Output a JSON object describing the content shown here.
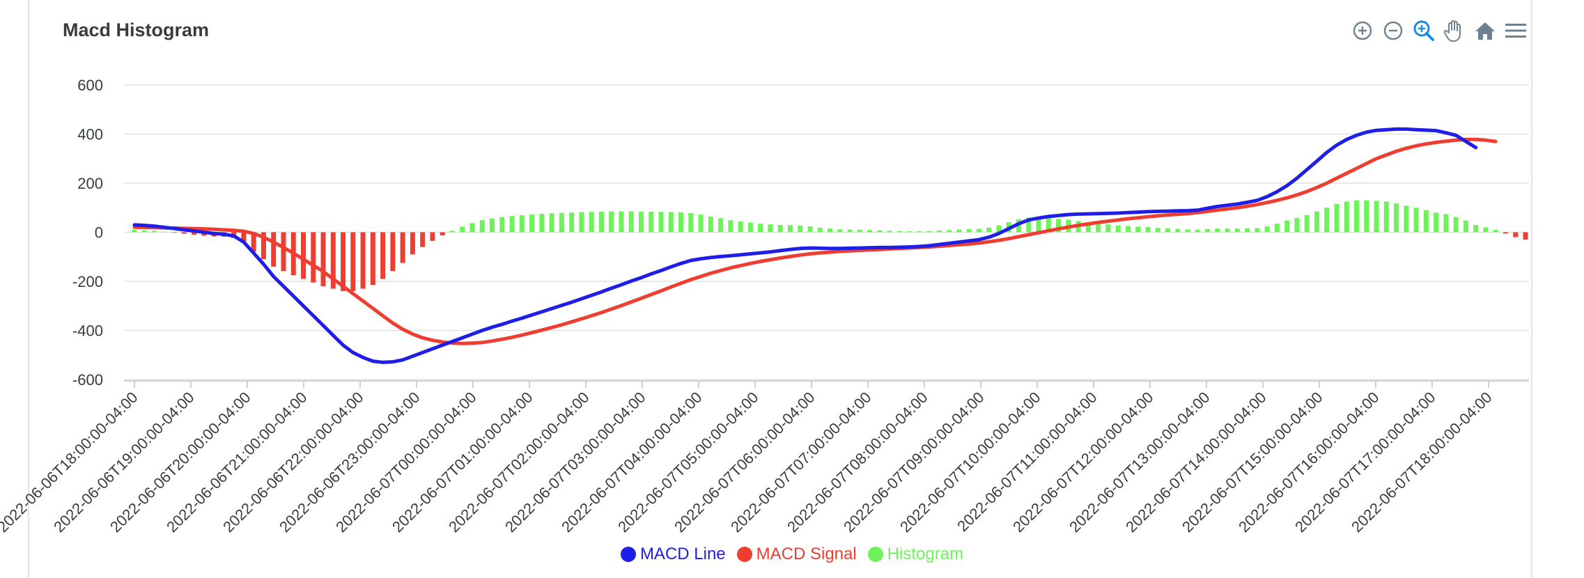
{
  "toolbar": {
    "icons": [
      "zoom-in-icon",
      "zoom-out-icon",
      "zoom-select-icon",
      "pan-icon",
      "home-icon",
      "menu-icon"
    ],
    "active_color": "#1e88e5",
    "idle_color": "#6e8192"
  },
  "chart_data": {
    "type": "line",
    "title": "Macd Histogram",
    "xlabel": "",
    "ylabel": "",
    "ylim": [
      -600,
      600
    ],
    "yticks": [
      600,
      400,
      200,
      0,
      -200,
      -400,
      -600
    ],
    "grid": true,
    "legend_position": "bottom",
    "x_labels": [
      "2022-06-06T18:00:00-04:00",
      "2022-06-06T19:00:00-04:00",
      "2022-06-06T20:00:00-04:00",
      "2022-06-06T21:00:00-04:00",
      "2022-06-06T22:00:00-04:00",
      "2022-06-06T23:00:00-04:00",
      "2022-06-07T00:00:00-04:00",
      "2022-06-07T01:00:00-04:00",
      "2022-06-07T02:00:00-04:00",
      "2022-06-07T03:00:00-04:00",
      "2022-06-07T04:00:00-04:00",
      "2022-06-07T05:00:00-04:00",
      "2022-06-07T06:00:00-04:00",
      "2022-06-07T07:00:00-04:00",
      "2022-06-07T08:00:00-04:00",
      "2022-06-07T09:00:00-04:00",
      "2022-06-07T10:00:00-04:00",
      "2022-06-07T11:00:00-04:00",
      "2022-06-07T12:00:00-04:00",
      "2022-06-07T13:00:00-04:00",
      "2022-06-07T14:00:00-04:00",
      "2022-06-07T15:00:00-04:00",
      "2022-06-07T16:00:00-04:00",
      "2022-06-07T17:00:00-04:00",
      "2022-06-07T18:00:00-04:00"
    ],
    "series": [
      {
        "name": "MACD Line",
        "color": "#1e1ee6",
        "kind": "line",
        "values": [
          30,
          28,
          25,
          20,
          15,
          10,
          5,
          0,
          -5,
          -8,
          -15,
          -40,
          -85,
          -130,
          -180,
          -220,
          -260,
          -300,
          -340,
          -380,
          -420,
          -460,
          -490,
          -510,
          -525,
          -530,
          -528,
          -520,
          -505,
          -490,
          -475,
          -460,
          -445,
          -430,
          -415,
          -400,
          -387,
          -375,
          -362,
          -350,
          -337,
          -324,
          -311,
          -298,
          -285,
          -271,
          -257,
          -243,
          -228,
          -214,
          -199,
          -185,
          -170,
          -156,
          -141,
          -127,
          -115,
          -108,
          -103,
          -99,
          -96,
          -92,
          -88,
          -84,
          -80,
          -75,
          -70,
          -66,
          -64,
          -65,
          -66,
          -66,
          -65,
          -64,
          -63,
          -62,
          -62,
          -61,
          -60,
          -58,
          -55,
          -50,
          -45,
          -40,
          -35,
          -30,
          -20,
          -5,
          15,
          35,
          50,
          58,
          64,
          68,
          72,
          74,
          75,
          76,
          77,
          78,
          80,
          82,
          84,
          85,
          86,
          87,
          88,
          90,
          98,
          105,
          110,
          115,
          122,
          130,
          145,
          165,
          190,
          220,
          255,
          290,
          325,
          355,
          378,
          395,
          408,
          415,
          418,
          420,
          420,
          418,
          416,
          414,
          405,
          395,
          370,
          345
        ]
      },
      {
        "name": "MACD Signal",
        "color": "#ee3d31",
        "kind": "line",
        "values": [
          20,
          20,
          19,
          18,
          17,
          16,
          15,
          14,
          12,
          10,
          8,
          4,
          -5,
          -20,
          -40,
          -62,
          -85,
          -110,
          -135,
          -160,
          -190,
          -220,
          -250,
          -280,
          -310,
          -340,
          -370,
          -395,
          -415,
          -430,
          -440,
          -447,
          -451,
          -453,
          -452,
          -449,
          -443,
          -436,
          -428,
          -419,
          -409,
          -399,
          -388,
          -377,
          -365,
          -353,
          -340,
          -327,
          -313,
          -299,
          -284,
          -269,
          -254,
          -239,
          -223,
          -208,
          -193,
          -180,
          -167,
          -156,
          -145,
          -136,
          -127,
          -119,
          -112,
          -105,
          -99,
          -93,
          -88,
          -84,
          -81,
          -78,
          -76,
          -74,
          -72,
          -70,
          -68,
          -66,
          -64,
          -62,
          -60,
          -57,
          -54,
          -51,
          -48,
          -44,
          -39,
          -33,
          -26,
          -18,
          -10,
          -2,
          6,
          14,
          21,
          28,
          34,
          40,
          45,
          50,
          55,
          59,
          63,
          67,
          70,
          73,
          76,
          80,
          85,
          90,
          95,
          100,
          106,
          113,
          121,
          130,
          140,
          152,
          166,
          182,
          200,
          220,
          240,
          260,
          280,
          300,
          315,
          330,
          342,
          352,
          360,
          366,
          371,
          375,
          378,
          378,
          375,
          370
        ]
      },
      {
        "name": "Histogram",
        "color": "#6ef25a",
        "kind": "bar",
        "values": [
          10,
          8,
          6,
          2,
          -2,
          -6,
          -10,
          -14,
          -17,
          -18,
          -23,
          -44,
          -80,
          -110,
          -140,
          -158,
          -175,
          -190,
          -205,
          -220,
          -230,
          -240,
          -240,
          -230,
          -215,
          -190,
          -158,
          -125,
          -90,
          -60,
          -35,
          -13,
          6,
          23,
          37,
          49,
          56,
          61,
          66,
          69,
          72,
          75,
          77,
          79,
          80,
          82,
          83,
          84,
          85,
          85,
          85,
          84,
          84,
          83,
          82,
          81,
          78,
          72,
          64,
          57,
          49,
          44,
          39,
          35,
          32,
          30,
          29,
          27,
          24,
          19,
          15,
          12,
          11,
          10,
          9,
          8,
          6,
          5,
          4,
          4,
          5,
          7,
          9,
          11,
          13,
          14,
          19,
          28,
          41,
          53,
          60,
          60,
          58,
          54,
          51,
          46,
          41,
          36,
          32,
          28,
          25,
          23,
          21,
          18,
          16,
          14,
          12,
          10,
          13,
          15,
          15,
          15,
          16,
          17,
          24,
          35,
          48,
          58,
          70,
          85,
          100,
          115,
          125,
          130,
          130,
          128,
          125,
          117,
          108,
          100,
          90,
          80,
          74,
          62,
          48,
          30,
          20,
          10,
          -5,
          -20,
          -30
        ]
      }
    ]
  }
}
